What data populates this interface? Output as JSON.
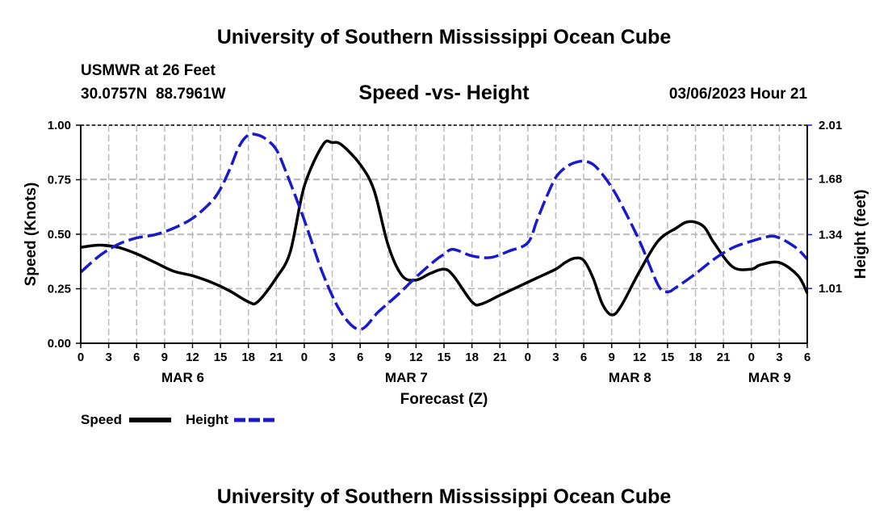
{
  "header": {
    "title": "University of Southern Mississippi Ocean Cube",
    "station": "USMWR at 26 Feet",
    "coords": "30.0757N  88.7961W",
    "subtitle": "Speed -vs- Height",
    "date": "03/06/2023 Hour 21",
    "footer_title": "University of Southern Mississippi Ocean Cube"
  },
  "legend": {
    "speed_label": "Speed",
    "height_label": "Height"
  },
  "colors": {
    "speed": "#000000",
    "height": "#1a1acc",
    "grid": "#bbbbbb"
  },
  "chart_data": {
    "type": "line",
    "title": "Speed -vs- Height",
    "xlabel": "Forecast (Z)",
    "ylabel": "Speed (Knots)",
    "y2label": "Height (feet)",
    "x_range_hours": [
      0,
      78
    ],
    "ylim": [
      0,
      1
    ],
    "y_ticks": [
      "0.00",
      "0.25",
      "0.50",
      "0.75",
      "1.00"
    ],
    "y_tick_values": [
      0,
      0.25,
      0.5,
      0.75,
      1.0
    ],
    "y2lim": [
      0.675,
      2.01
    ],
    "y2_ticks": [
      "1.01",
      "1.34",
      "1.68",
      "2.01"
    ],
    "y2_tick_values": [
      1.01,
      1.34,
      1.68,
      2.01
    ],
    "x_ticks": [
      "0",
      "3",
      "6",
      "9",
      "12",
      "15",
      "18",
      "21",
      "0",
      "3",
      "6",
      "9",
      "12",
      "15",
      "18",
      "21",
      "0",
      "3",
      "6",
      "9",
      "12",
      "15",
      "18",
      "21",
      "0",
      "3",
      "6"
    ],
    "x_tick_hours": [
      0,
      3,
      6,
      9,
      12,
      15,
      18,
      21,
      24,
      27,
      30,
      33,
      36,
      39,
      42,
      45,
      48,
      51,
      54,
      57,
      60,
      63,
      66,
      69,
      72,
      75,
      78
    ],
    "day_labels": [
      {
        "label": "MAR 6",
        "hour": 12
      },
      {
        "label": "MAR 7",
        "hour": 36
      },
      {
        "label": "MAR 8",
        "hour": 60
      },
      {
        "label": "MAR 9",
        "hour": 75
      }
    ],
    "series": [
      {
        "name": "Speed",
        "axis": "left",
        "style": "solid",
        "x": [
          0,
          2,
          4,
          6,
          8,
          10,
          12,
          14,
          16,
          18,
          19,
          21,
          22.5,
          24,
          26,
          27,
          28,
          30,
          31.5,
          33,
          34.5,
          36,
          37.5,
          39,
          40,
          42,
          43,
          45,
          47,
          49,
          51,
          52,
          53,
          54,
          55,
          56,
          57,
          58,
          60,
          62,
          64,
          65,
          66,
          67,
          68,
          70,
          72,
          73,
          75,
          77,
          78
        ],
        "values": [
          0.44,
          0.45,
          0.44,
          0.41,
          0.37,
          0.33,
          0.31,
          0.28,
          0.24,
          0.19,
          0.19,
          0.3,
          0.42,
          0.72,
          0.91,
          0.92,
          0.91,
          0.82,
          0.7,
          0.45,
          0.31,
          0.29,
          0.32,
          0.34,
          0.31,
          0.19,
          0.18,
          0.22,
          0.26,
          0.3,
          0.34,
          0.37,
          0.39,
          0.38,
          0.3,
          0.18,
          0.13,
          0.17,
          0.33,
          0.47,
          0.53,
          0.555,
          0.555,
          0.53,
          0.46,
          0.35,
          0.34,
          0.36,
          0.37,
          0.31,
          0.23
        ]
      },
      {
        "name": "Height",
        "axis": "right",
        "style": "dashed",
        "x": [
          0,
          2,
          4,
          6,
          8,
          10,
          12,
          14,
          15,
          16,
          17,
          18,
          19,
          20,
          21,
          22,
          24,
          26,
          28,
          30,
          32,
          34,
          36,
          38,
          39,
          40,
          42,
          44,
          46,
          48,
          49,
          50,
          51,
          52,
          53,
          54,
          55,
          56,
          57,
          58,
          60,
          62,
          63,
          64,
          66,
          68,
          70,
          72,
          74,
          75,
          76,
          77,
          78
        ],
        "values": [
          1.11,
          1.21,
          1.28,
          1.32,
          1.34,
          1.38,
          1.44,
          1.54,
          1.62,
          1.74,
          1.88,
          1.95,
          1.95,
          1.92,
          1.86,
          1.73,
          1.43,
          1.1,
          0.86,
          0.76,
          0.87,
          0.97,
          1.08,
          1.18,
          1.22,
          1.25,
          1.21,
          1.2,
          1.24,
          1.29,
          1.43,
          1.57,
          1.69,
          1.75,
          1.78,
          1.79,
          1.77,
          1.71,
          1.63,
          1.53,
          1.3,
          1.03,
          0.99,
          1.02,
          1.1,
          1.19,
          1.26,
          1.3,
          1.33,
          1.32,
          1.29,
          1.25,
          1.19
        ]
      }
    ]
  }
}
